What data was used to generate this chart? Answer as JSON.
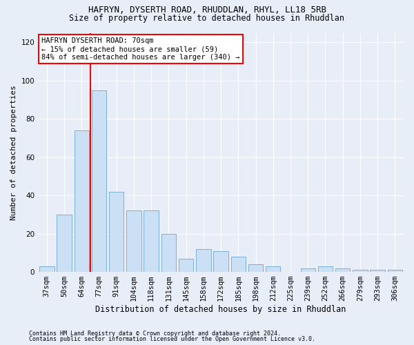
{
  "title1": "HAFRYN, DYSERTH ROAD, RHUDDLAN, RHYL, LL18 5RB",
  "title2": "Size of property relative to detached houses in Rhuddlan",
  "xlabel": "Distribution of detached houses by size in Rhuddlan",
  "ylabel": "Number of detached properties",
  "categories": [
    "37sqm",
    "50sqm",
    "64sqm",
    "77sqm",
    "91sqm",
    "104sqm",
    "118sqm",
    "131sqm",
    "145sqm",
    "158sqm",
    "172sqm",
    "185sqm",
    "198sqm",
    "212sqm",
    "225sqm",
    "239sqm",
    "252sqm",
    "266sqm",
    "279sqm",
    "293sqm",
    "306sqm"
  ],
  "values": [
    3,
    30,
    74,
    95,
    42,
    32,
    32,
    20,
    7,
    12,
    11,
    8,
    4,
    3,
    0,
    2,
    3,
    2,
    1,
    1,
    1
  ],
  "bar_color": "#cce0f5",
  "bar_edge_color": "#7bafd4",
  "vline_color": "red",
  "vline_index": 3,
  "annotation_text": "HAFRYN DYSERTH ROAD: 70sqm\n← 15% of detached houses are smaller (59)\n84% of semi-detached houses are larger (340) →",
  "annotation_box_color": "white",
  "annotation_box_edge_color": "red",
  "footnote1": "Contains HM Land Registry data © Crown copyright and database right 2024.",
  "footnote2": "Contains public sector information licensed under the Open Government Licence v3.0.",
  "ylim": [
    0,
    125
  ],
  "yticks": [
    0,
    20,
    40,
    60,
    80,
    100,
    120
  ],
  "bg_color": "#e8eef8",
  "plot_bg_color": "#e8eef8",
  "grid_color": "white",
  "title1_fontsize": 9,
  "title2_fontsize": 8.5,
  "xlabel_fontsize": 8.5,
  "ylabel_fontsize": 8,
  "tick_fontsize": 7.5,
  "annot_fontsize": 7.5,
  "footnote_fontsize": 6
}
